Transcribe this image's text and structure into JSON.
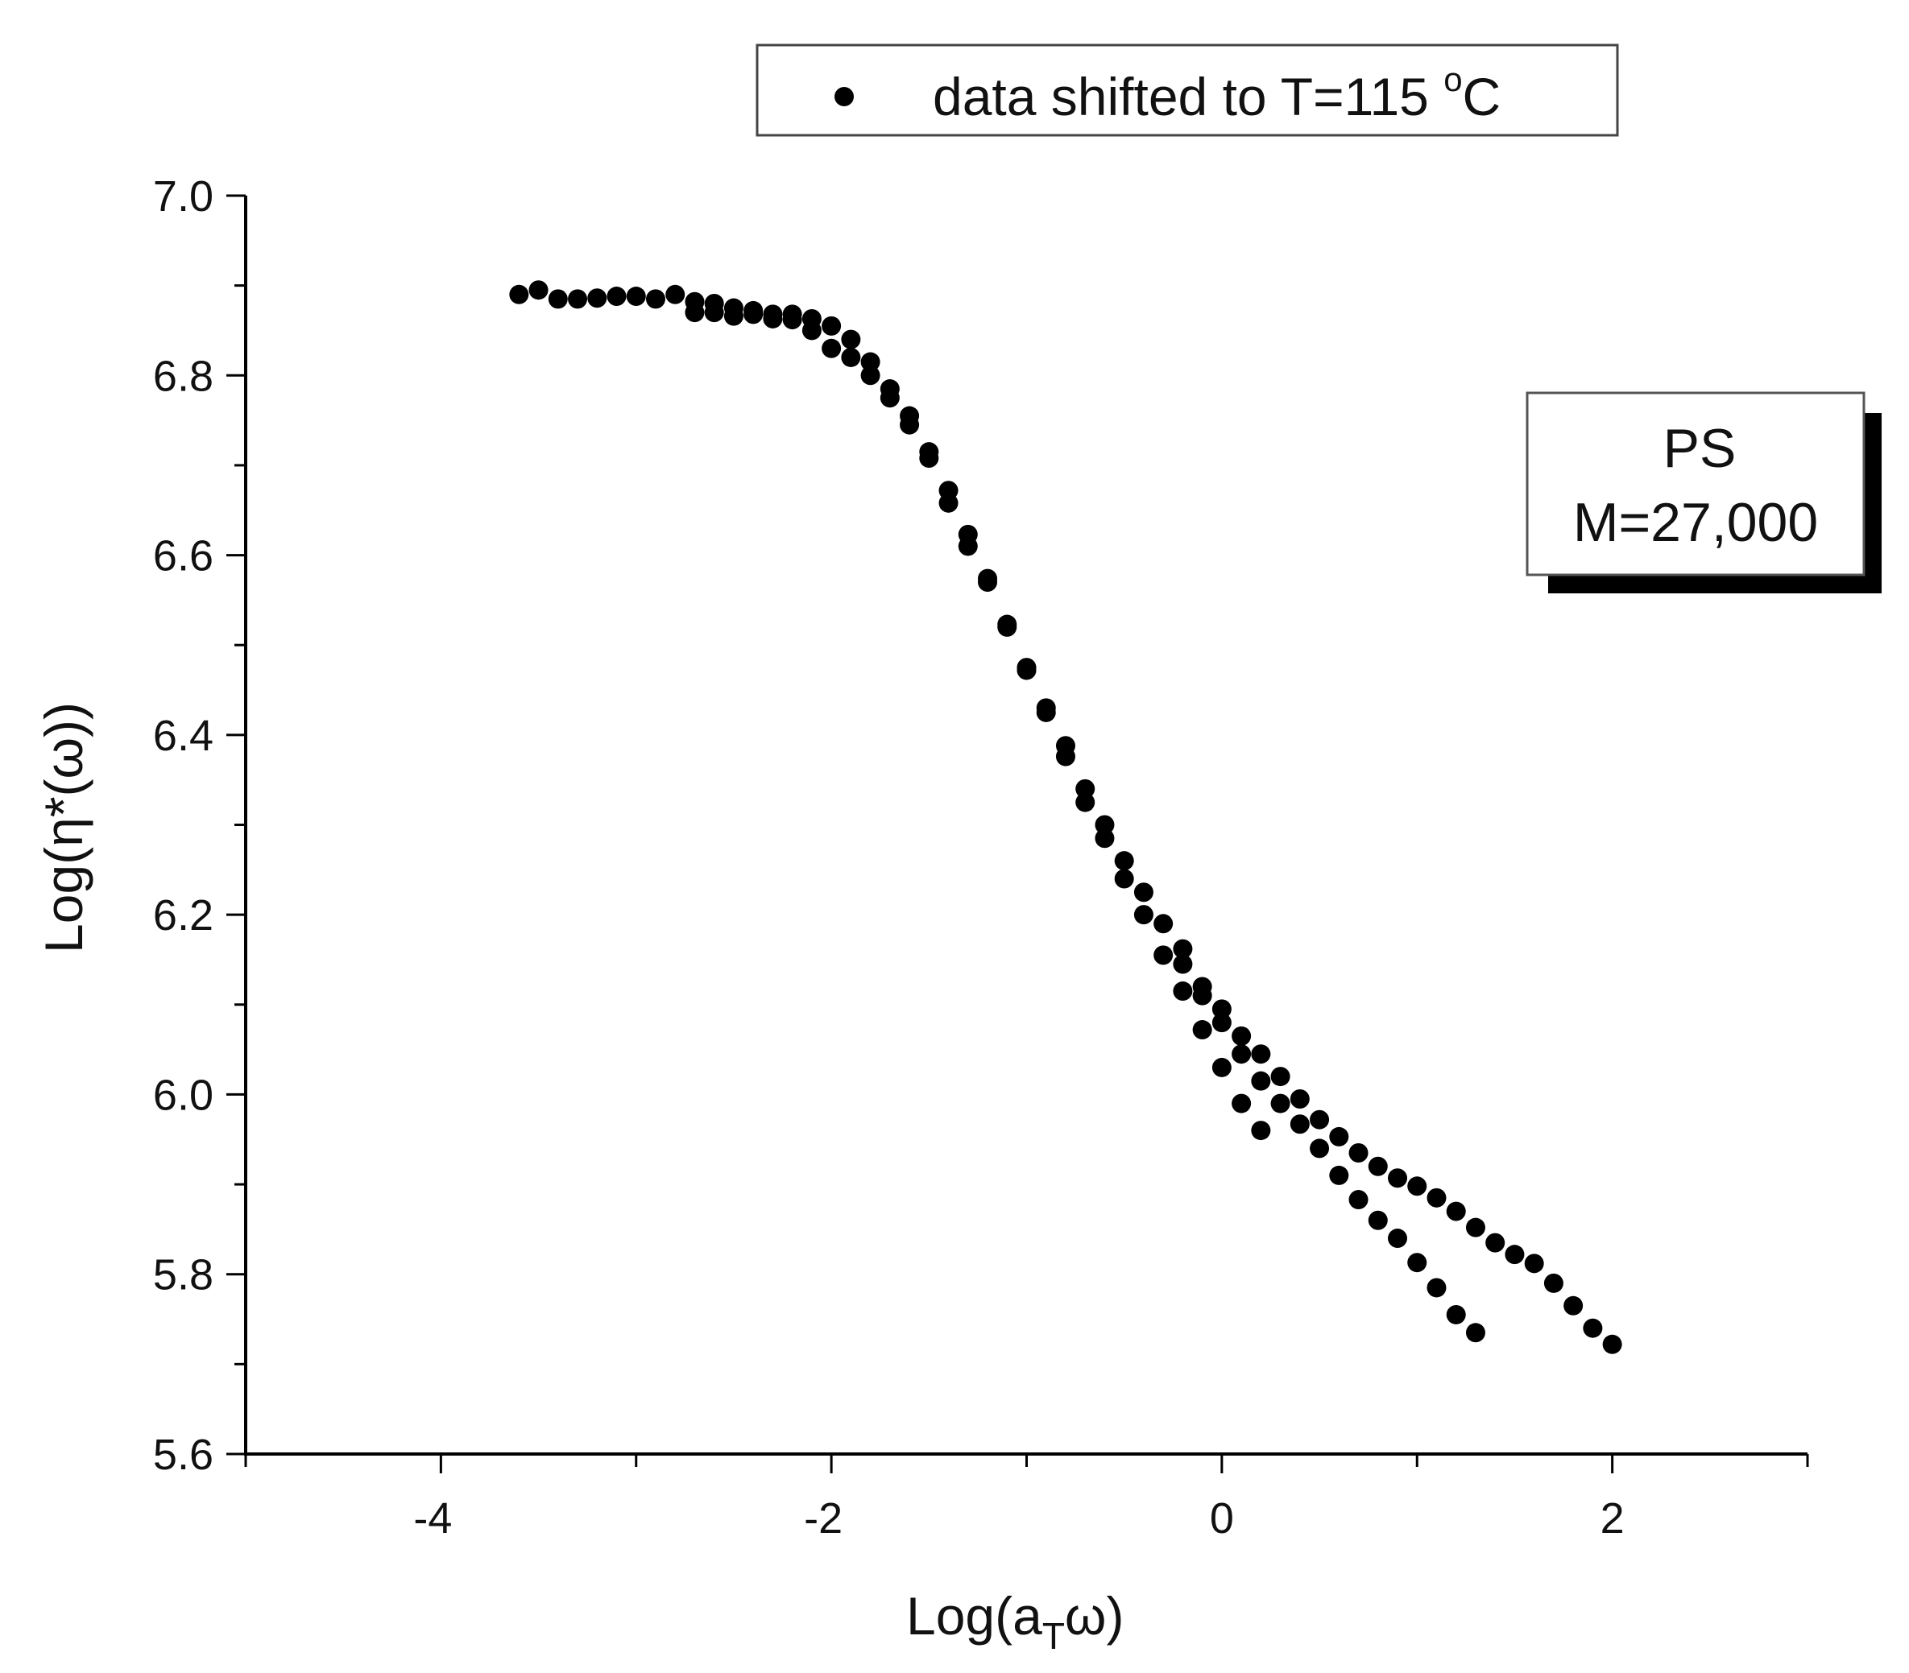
{
  "chart_data": {
    "type": "scatter",
    "xlabel": "Log(a",
    "xlabel_sub": "T",
    "xlabel_tail": "ω)",
    "ylabel": "Log(η*(ω))",
    "xlim": [
      -5,
      3
    ],
    "ylim": [
      5.6,
      7.0
    ],
    "x_ticks": [
      -4,
      -2,
      0,
      2
    ],
    "y_ticks": [
      5.6,
      5.8,
      6.0,
      6.2,
      6.4,
      6.6,
      6.8,
      7.0
    ],
    "legend": {
      "text": "data shifted to T=115 ",
      "sup": "o",
      "tail": "C",
      "position": "top-center"
    },
    "annotation": {
      "line1": "PS",
      "line2": "M=27,000",
      "position": "right"
    },
    "marker_color": "#000000",
    "series": [
      {
        "name": "data shifted to T=115 °C",
        "points": [
          [
            -3.6,
            6.89
          ],
          [
            -3.5,
            6.895
          ],
          [
            -3.4,
            6.885
          ],
          [
            -3.3,
            6.885
          ],
          [
            -3.2,
            6.886
          ],
          [
            -3.1,
            6.888
          ],
          [
            -3.0,
            6.888
          ],
          [
            -2.9,
            6.885
          ],
          [
            -2.8,
            6.89
          ],
          [
            -2.7,
            6.87
          ],
          [
            -2.7,
            6.882
          ],
          [
            -2.6,
            6.88
          ],
          [
            -2.6,
            6.87
          ],
          [
            -2.5,
            6.875
          ],
          [
            -2.5,
            6.866
          ],
          [
            -2.4,
            6.872
          ],
          [
            -2.4,
            6.868
          ],
          [
            -2.3,
            6.868
          ],
          [
            -2.3,
            6.863
          ],
          [
            -2.2,
            6.868
          ],
          [
            -2.2,
            6.862
          ],
          [
            -2.1,
            6.863
          ],
          [
            -2.1,
            6.85
          ],
          [
            -2.0,
            6.855
          ],
          [
            -2.0,
            6.83
          ],
          [
            -1.9,
            6.84
          ],
          [
            -1.9,
            6.82
          ],
          [
            -1.8,
            6.815
          ],
          [
            -1.8,
            6.8
          ],
          [
            -1.7,
            6.785
          ],
          [
            -1.7,
            6.775
          ],
          [
            -1.6,
            6.755
          ],
          [
            -1.6,
            6.745
          ],
          [
            -1.5,
            6.715
          ],
          [
            -1.5,
            6.708
          ],
          [
            -1.4,
            6.672
          ],
          [
            -1.4,
            6.658
          ],
          [
            -1.3,
            6.623
          ],
          [
            -1.3,
            6.61
          ],
          [
            -1.2,
            6.574
          ],
          [
            -1.2,
            6.57
          ],
          [
            -1.1,
            6.523
          ],
          [
            -1.1,
            6.52
          ],
          [
            -1.0,
            6.475
          ],
          [
            -1.0,
            6.472
          ],
          [
            -0.9,
            6.43
          ],
          [
            -0.9,
            6.425
          ],
          [
            -0.8,
            6.388
          ],
          [
            -0.8,
            6.376
          ],
          [
            -0.7,
            6.34
          ],
          [
            -0.7,
            6.325
          ],
          [
            -0.6,
            6.3
          ],
          [
            -0.6,
            6.285
          ],
          [
            -0.5,
            6.26
          ],
          [
            -0.5,
            6.24
          ],
          [
            -0.4,
            6.225
          ],
          [
            -0.4,
            6.2
          ],
          [
            -0.3,
            6.19
          ],
          [
            -0.3,
            6.155
          ],
          [
            -0.2,
            6.162
          ],
          [
            -0.2,
            6.115
          ],
          [
            -0.2,
            6.145
          ],
          [
            -0.1,
            6.12
          ],
          [
            -0.1,
            6.072
          ],
          [
            -0.1,
            6.11
          ],
          [
            0.0,
            6.095
          ],
          [
            0.0,
            6.08
          ],
          [
            0.0,
            6.03
          ],
          [
            0.1,
            6.065
          ],
          [
            0.1,
            6.045
          ],
          [
            0.1,
            5.99
          ],
          [
            0.2,
            6.045
          ],
          [
            0.2,
            6.015
          ],
          [
            0.2,
            5.96
          ],
          [
            0.3,
            6.02
          ],
          [
            0.3,
            5.99
          ],
          [
            0.4,
            5.995
          ],
          [
            0.4,
            5.967
          ],
          [
            0.5,
            5.972
          ],
          [
            0.5,
            5.94
          ],
          [
            0.6,
            5.953
          ],
          [
            0.6,
            5.91
          ],
          [
            0.7,
            5.935
          ],
          [
            0.7,
            5.883
          ],
          [
            0.8,
            5.92
          ],
          [
            0.8,
            5.86
          ],
          [
            0.9,
            5.907
          ],
          [
            0.9,
            5.84
          ],
          [
            1.0,
            5.898
          ],
          [
            1.0,
            5.813
          ],
          [
            1.1,
            5.885
          ],
          [
            1.1,
            5.785
          ],
          [
            1.2,
            5.87
          ],
          [
            1.2,
            5.755
          ],
          [
            1.3,
            5.852
          ],
          [
            1.3,
            5.735
          ],
          [
            1.4,
            5.835
          ],
          [
            1.5,
            5.822
          ],
          [
            1.6,
            5.812
          ],
          [
            1.7,
            5.79
          ],
          [
            1.8,
            5.765
          ],
          [
            1.9,
            5.74
          ],
          [
            2.0,
            5.722
          ]
        ]
      }
    ]
  }
}
